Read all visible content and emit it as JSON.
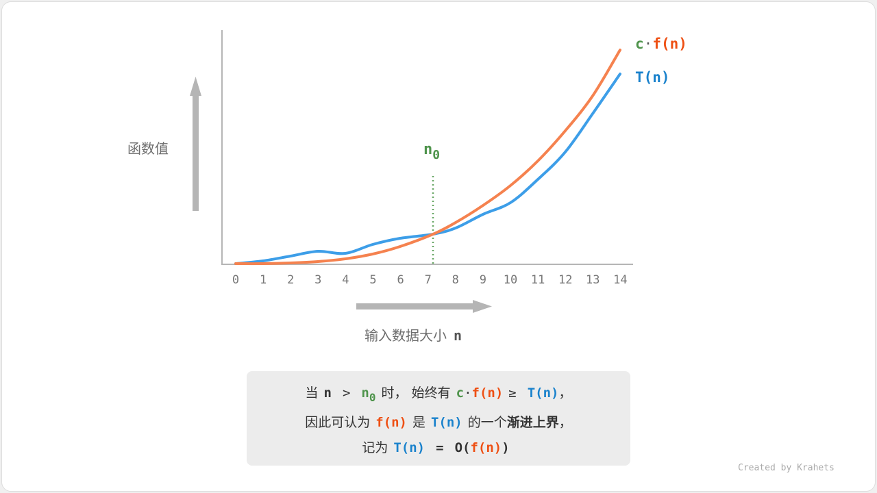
{
  "y_axis_label": "函数值",
  "x_axis_label": "输入数据大小",
  "x_axis_var": "n",
  "x_ticks": [
    "0",
    "1",
    "2",
    "3",
    "4",
    "5",
    "6",
    "7",
    "8",
    "9",
    "10",
    "11",
    "12",
    "13",
    "14"
  ],
  "n0_label": {
    "base": "n",
    "sub": "0"
  },
  "legend": {
    "cf": {
      "c": "c",
      "dot": "·",
      "f": "f(n)"
    },
    "T": "T(n)"
  },
  "caption": {
    "line1": {
      "when": "当",
      "n": "n",
      "gt": ">",
      "n0": "n",
      "n0sub": "0",
      "time": "时，",
      "always": "始终有",
      "c": "c",
      "dot": "·",
      "fn": "f(n)",
      "ge": "≥",
      "Tn": "T(n)",
      "comma": "，"
    },
    "line2": {
      "thus": "因此可认为",
      "fn": "f(n)",
      "is": "是",
      "Tn": "T(n)",
      "of": "的一个",
      "bound": "渐进上界",
      "comma": "，"
    },
    "line3": {
      "denote": "记为",
      "Tn": "T(n)",
      "eq": "=",
      "O": "O(",
      "fn": "f(n)",
      "close": ")"
    }
  },
  "credit": "Created by Krahets",
  "colors": {
    "cf_curve": "#f5824f",
    "T_curve": "#3d9ee8",
    "n0": "#4f944c",
    "axis": "#b5b5b5"
  }
}
